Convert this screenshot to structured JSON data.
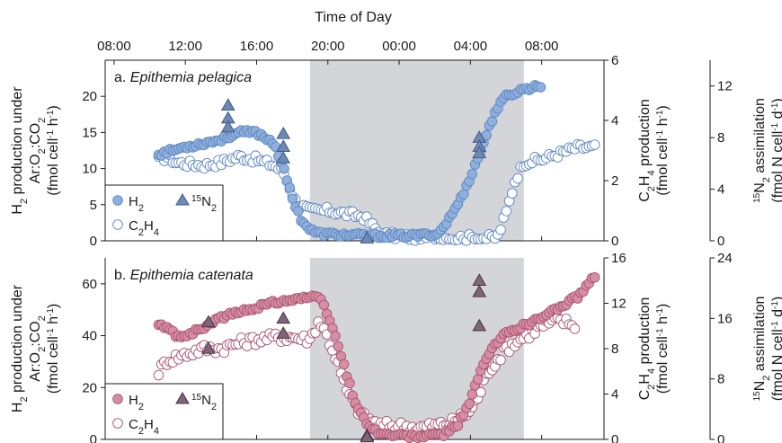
{
  "chart_data": {
    "type": "scatter",
    "title": "Time of Day",
    "time_ticks": [
      "08:00",
      "12:00",
      "16:00",
      "20:00",
      "00:00",
      "04:00",
      "08:00"
    ],
    "dark_period": {
      "start_h": 19,
      "end_h": 31
    },
    "colors": {
      "pelagica_fill": "#8fb0dd",
      "pelagica_stroke": "#5e86c2",
      "pelagica_triangle": "#6f89b3",
      "pelagica_triangle_stroke": "#3d5a8a",
      "catenata_fill": "#d58ea3",
      "catenata_stroke": "#a9546f",
      "catenata_triangle": "#7e6577",
      "catenata_triangle_stroke": "#4a3446",
      "shade": "#d4d5d8"
    },
    "panels": [
      {
        "label_prefix": "a.",
        "species": "Epithemia pelagica",
        "y_left": {
          "label_line1": "H",
          "label_sub1": "2",
          "label_rest1": " production under",
          "label_line2": "Ar:O",
          "label_line2b": ":CO",
          "label_line3": "(fmol cell",
          "label_line3b": " h",
          "label_line3c": ")",
          "ticks": [
            0,
            5,
            10,
            15,
            20
          ],
          "ylim": [
            0,
            25
          ]
        },
        "y_right1": {
          "label_a": "C",
          "label_b": "H",
          "label_c": " production",
          "label_d": "(fmol cell",
          "label_e": " h",
          "label_f": ")",
          "ticks": [
            0,
            2,
            4,
            6
          ],
          "ylim": [
            0,
            6
          ]
        },
        "y_right2": {
          "label_a": "N",
          "label_b": " assimilation",
          "label_c": "(fmol N cell",
          "label_d": " d",
          "label_e": ")",
          "ticks": [
            0,
            4,
            8,
            12
          ],
          "ylim": [
            0,
            14
          ]
        },
        "legend": {
          "h2": "H",
          "h2_sub": "2",
          "c2h4_a": "C",
          "c2h4_sub1": "2",
          "c2h4_b": "H",
          "c2h4_sub2": "4",
          "n15_sup": "15",
          "n15": "N",
          "n15_sub": "2"
        },
        "h2_keypoints": [
          [
            10.5,
            12
          ],
          [
            12,
            13
          ],
          [
            13,
            13.5
          ],
          [
            14,
            14
          ],
          [
            15,
            15
          ],
          [
            16,
            15
          ],
          [
            17,
            13.5
          ],
          [
            17.5,
            10
          ],
          [
            18,
            6
          ],
          [
            18.5,
            3
          ],
          [
            19,
            1.5
          ],
          [
            19.5,
            1
          ],
          [
            21,
            0.8
          ],
          [
            23,
            0.7
          ],
          [
            25,
            0.7
          ],
          [
            26.2,
            1
          ],
          [
            26.8,
            3
          ],
          [
            27.5,
            6
          ],
          [
            28.2,
            10
          ],
          [
            28.8,
            14
          ],
          [
            29.4,
            18
          ],
          [
            30,
            20
          ],
          [
            31,
            21
          ],
          [
            32,
            21.5
          ]
        ],
        "c2h4_keypoints": [
          [
            10.5,
            2.7
          ],
          [
            11,
            2.8
          ],
          [
            11.5,
            2.6
          ],
          [
            13,
            2.5
          ],
          [
            14,
            2.6
          ],
          [
            15,
            2.8
          ],
          [
            16,
            2.7
          ],
          [
            17,
            2.5
          ],
          [
            17.5,
            2.3
          ],
          [
            18.2,
            1.3
          ],
          [
            19,
            1
          ],
          [
            20,
            1
          ],
          [
            21,
            0.9
          ],
          [
            22,
            0.8
          ],
          [
            22.5,
            0.5
          ],
          [
            23,
            0.2
          ],
          [
            25,
            0.1
          ],
          [
            28,
            0.1
          ],
          [
            29.5,
            0.1
          ],
          [
            30,
            0.9
          ],
          [
            30.5,
            2
          ],
          [
            31,
            2.6
          ],
          [
            32,
            2.7
          ],
          [
            33,
            2.9
          ],
          [
            34,
            3.1
          ],
          [
            35,
            3.1
          ]
        ],
        "c2h4_night_bump_keypoints": [],
        "n15_points": [
          [
            14.4,
            10.5
          ],
          [
            14.4,
            9.5
          ],
          [
            14.4,
            8.8
          ],
          [
            17.5,
            8.3
          ],
          [
            17.5,
            7.3
          ],
          [
            17.5,
            6.4
          ],
          [
            22.2,
            0.2
          ],
          [
            28.5,
            8
          ],
          [
            28.5,
            7.3
          ],
          [
            28.5,
            6.8
          ]
        ]
      },
      {
        "label_prefix": "b.",
        "species": "Epithemia catenata",
        "y_left": {
          "label_line1": "H",
          "label_sub1": "2",
          "label_rest1": " production under",
          "label_line2": "Ar:O",
          "label_line2b": ":CO",
          "label_line3": "(fmol cell",
          "label_line3b": " h",
          "label_line3c": ")",
          "ticks": [
            0,
            20,
            40,
            60
          ],
          "ylim": [
            0,
            70
          ]
        },
        "y_right1": {
          "label_a": "C",
          "label_b": "H",
          "label_c": " production",
          "label_d": "(fmol cell",
          "label_e": " h",
          "label_f": ")",
          "ticks": [
            0,
            4,
            8,
            12,
            16
          ],
          "ylim": [
            0,
            16
          ]
        },
        "y_right2": {
          "label_a": "N",
          "label_b": " assimilation",
          "label_c": "(fmol N cell",
          "label_d": " d",
          "label_e": ")",
          "ticks": [
            0,
            8,
            16,
            24
          ],
          "ylim": [
            0,
            24
          ]
        },
        "legend": {
          "h2": "H",
          "h2_sub": "2",
          "c2h4_a": "C",
          "c2h4_sub1": "2",
          "c2h4_b": "H",
          "c2h4_sub2": "4",
          "n15_sup": "15",
          "n15": "N",
          "n15_sub": "2"
        },
        "h2_keypoints": [
          [
            10.5,
            44
          ],
          [
            11,
            43
          ],
          [
            11.5,
            40
          ],
          [
            12,
            40
          ],
          [
            13,
            43
          ],
          [
            14,
            47
          ],
          [
            15,
            49
          ],
          [
            16,
            51
          ],
          [
            17,
            53
          ],
          [
            18,
            54
          ],
          [
            19,
            55
          ],
          [
            19.6,
            54
          ],
          [
            20,
            48
          ],
          [
            20.5,
            38
          ],
          [
            21,
            26
          ],
          [
            21.5,
            15
          ],
          [
            22,
            8
          ],
          [
            22.5,
            4
          ],
          [
            23,
            2
          ],
          [
            25,
            1
          ],
          [
            26.5,
            2
          ],
          [
            27.3,
            6
          ],
          [
            28,
            15
          ],
          [
            28.5,
            25
          ],
          [
            29.2,
            35
          ],
          [
            30,
            41
          ],
          [
            31,
            44
          ],
          [
            32,
            47
          ],
          [
            33,
            51
          ],
          [
            34,
            55
          ],
          [
            35,
            63
          ]
        ],
        "c2h4_keypoints": [
          [
            10.5,
            6
          ],
          [
            11,
            7
          ],
          [
            12,
            7.5
          ],
          [
            13,
            8
          ],
          [
            14,
            8
          ],
          [
            15,
            8.5
          ],
          [
            16,
            8.8
          ],
          [
            17,
            9
          ],
          [
            18,
            9
          ],
          [
            19,
            8.8
          ],
          [
            19.5,
            10.5
          ],
          [
            20,
            9
          ],
          [
            20.5,
            7
          ],
          [
            21,
            4.5
          ],
          [
            21.5,
            3
          ],
          [
            22,
            2
          ],
          [
            23,
            1.2
          ],
          [
            24,
            1.2
          ],
          [
            25,
            1
          ],
          [
            26,
            1.2
          ],
          [
            27,
            1.5
          ],
          [
            28,
            2.5
          ],
          [
            28.5,
            4
          ],
          [
            29,
            6
          ],
          [
            29.5,
            7
          ],
          [
            30,
            8
          ],
          [
            31,
            9
          ],
          [
            32,
            10
          ],
          [
            33,
            10.5
          ],
          [
            34,
            10
          ]
        ],
        "c2h4_night_bump_keypoints": [],
        "n15_points": [
          [
            13.3,
            15.5
          ],
          [
            13.3,
            12
          ],
          [
            17.5,
            16
          ],
          [
            17.5,
            14
          ],
          [
            22.2,
            0.5
          ],
          [
            22.2,
            0.3
          ],
          [
            28.5,
            21
          ],
          [
            28.5,
            19.5
          ],
          [
            28.5,
            15
          ]
        ]
      }
    ]
  }
}
